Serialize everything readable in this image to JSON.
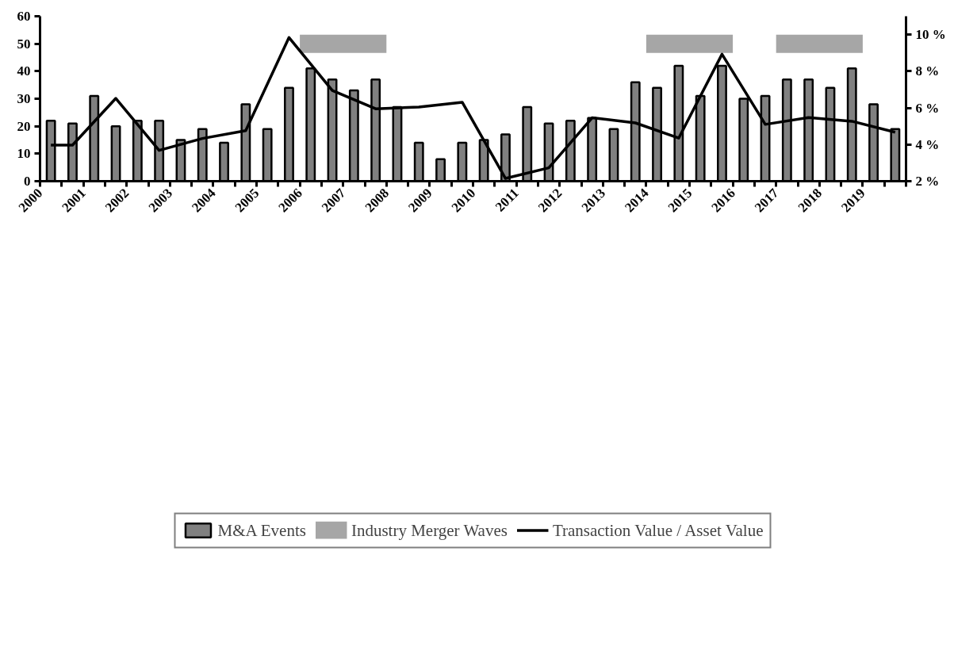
{
  "chart_data": {
    "type": "bar",
    "x": [
      2000.25,
      2000.75,
      2001.25,
      2001.75,
      2002.25,
      2002.75,
      2003.25,
      2003.75,
      2004.25,
      2004.75,
      2005.25,
      2005.75,
      2006.25,
      2006.75,
      2007.25,
      2007.75,
      2008.25,
      2008.75,
      2009.25,
      2009.75,
      2010.25,
      2010.75,
      2011.25,
      2011.75,
      2012.25,
      2012.75,
      2013.25,
      2013.75,
      2014.25,
      2014.75,
      2015.25,
      2015.75,
      2016.25,
      2016.75,
      2017.25,
      2017.75,
      2018.25,
      2018.75,
      2019.25,
      2019.75
    ],
    "series": [
      {
        "name": "M&A Events",
        "color": "#808080",
        "values": [
          22,
          21,
          31,
          20,
          22,
          22,
          15,
          19,
          14,
          28,
          19,
          34,
          41,
          37,
          33,
          37,
          27,
          14,
          8,
          14,
          15,
          17,
          27,
          21,
          22,
          23,
          19,
          36,
          34,
          42,
          31,
          42,
          30,
          31,
          37,
          37,
          34,
          41,
          28,
          19
        ]
      },
      {
        "name": "Industry Merger Waves",
        "type": "line",
        "color": "#a6a6a6",
        "x": [
          2006,
          2008,
          2011,
          2014,
          2016,
          2016.5,
          2017,
          2019
        ],
        "values": [
          50,
          50,
          null,
          50,
          50,
          null,
          50,
          50
        ]
      },
      {
        "name": "Transaction Value / Asset Value",
        "type": "line",
        "axis": "y2",
        "color": "#000000",
        "x": [
          2000.25,
          2000.75,
          2001.75,
          2002.75,
          2003.75,
          2004.75,
          2005.75,
          2006.75,
          2007.75,
          2008.75,
          2009.75,
          2010.75,
          2011.75,
          2012.75,
          2013.75,
          2014.75,
          2015.75,
          2016.75,
          2017.75,
          2018.75,
          2019.75
        ],
        "values": [
          3.97,
          3.97,
          6.52,
          3.68,
          4.33,
          4.76,
          9.84,
          6.95,
          5.95,
          6.05,
          6.31,
          2.15,
          2.73,
          5.46,
          5.18,
          4.35,
          8.93,
          5.1,
          5.47,
          5.27,
          4.67
        ]
      }
    ],
    "xlim": [
      2000,
      2020
    ],
    "xticks": [
      2000,
      {
        "value": 2000.5,
        "label": null
      },
      2001,
      {
        "value": 2001.5,
        "label": null
      },
      2002,
      {
        "value": 2002.5,
        "label": null
      },
      2003,
      {
        "value": 2003.5,
        "label": null
      },
      2004,
      {
        "value": 2004.5,
        "label": null
      },
      2005,
      {
        "value": 2005.5,
        "label": null
      },
      2006,
      {
        "value": 2006.5,
        "label": null
      },
      2007,
      {
        "value": 2007.5,
        "label": null
      },
      2008,
      {
        "value": 2008.5,
        "label": null
      },
      2009,
      {
        "value": 2009.5,
        "label": null
      },
      2010,
      {
        "value": 2010.5,
        "label": null
      },
      2011,
      {
        "value": 2011.5,
        "label": null
      },
      2012,
      {
        "value": 2012.5,
        "label": null
      },
      2013,
      {
        "value": 2013.5,
        "label": null
      },
      2014,
      {
        "value": 2014.5,
        "label": null
      },
      2015,
      {
        "value": 2015.5,
        "label": null
      },
      2016,
      {
        "value": 2016.5,
        "label": null
      },
      2017,
      {
        "value": 2017.5,
        "label": null
      },
      2018,
      {
        "value": 2018.5,
        "label": null
      },
      2019,
      {
        "value": 2019.5,
        "label": null
      },
      {
        "value": 2020,
        "label": null
      }
    ],
    "ylim": [
      0,
      60
    ],
    "yticks": [
      0,
      10,
      20,
      30,
      40,
      50,
      60
    ],
    "y2lim": [
      2,
      11
    ],
    "y2ticks": [
      {
        "value": 2,
        "label": "2 %"
      },
      {
        "value": 4,
        "label": "4 %"
      },
      {
        "value": 6,
        "label": "6 %"
      },
      {
        "value": 8,
        "label": "8 %"
      },
      {
        "value": 10,
        "label": "10 %"
      }
    ],
    "grid": false,
    "legend": "bottom"
  }
}
